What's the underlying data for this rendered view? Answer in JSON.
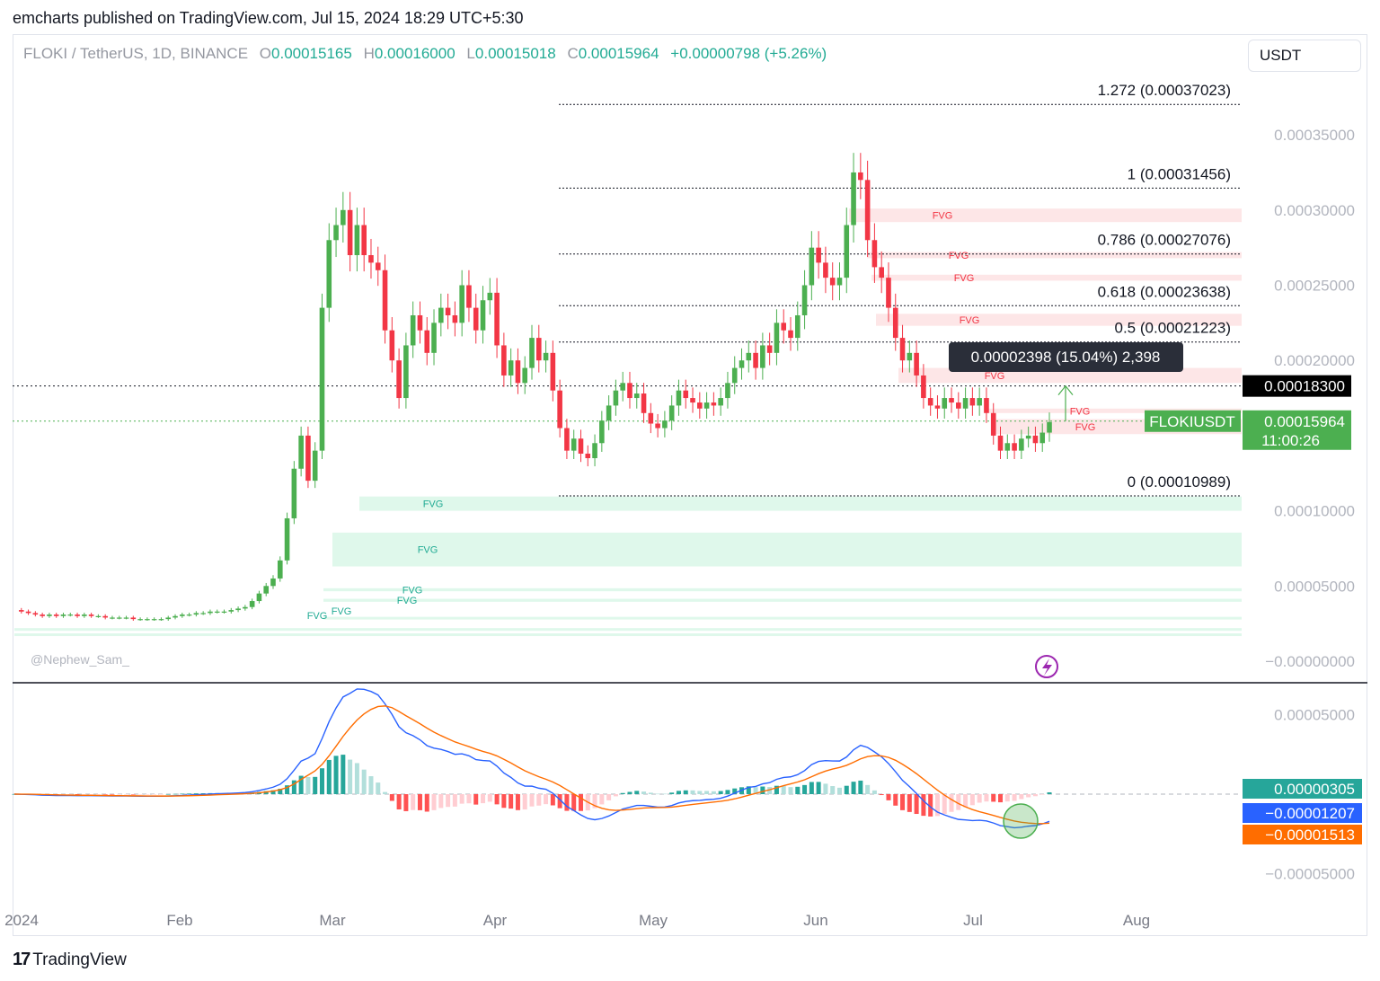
{
  "header": {
    "publisher": "emcharts published on TradingView.com, Jul 15, 2024 18:29 UTC+5:30"
  },
  "legend": {
    "symbol": "FLOKI / TetherUS, 1D, BINANCE",
    "open_key": "O",
    "open": "0.00015165",
    "high_key": "H",
    "high": "0.00016000",
    "low_key": "L",
    "low": "0.00015018",
    "close_key": "C",
    "close": "0.00015964",
    "change": "+0.00000798 (+5.26%)"
  },
  "currency_button": "USDT",
  "watermark": "@Nephew_Sam_",
  "brand": {
    "logo": "17",
    "name": "TradingView"
  },
  "colors": {
    "up": "#4caf50",
    "down": "#f23645",
    "macd": "#2962ff",
    "signal": "#ff6d00",
    "hist_up": "#26a69a",
    "hist_down": "#ff5252"
  },
  "chart_data": [
    {
      "type": "candlestick",
      "ylim": [
        0,
        0.00038
      ],
      "y_ticks": [
        "0.00035000",
        "0.00030000",
        "0.00025000",
        "0.00020000",
        "0.00010000",
        "0.00005000",
        "−0.00000000"
      ],
      "x_ticks": [
        "2024",
        "Feb",
        "Mar",
        "Apr",
        "May",
        "Jun",
        "Jul",
        "Aug"
      ],
      "price_markers": [
        {
          "label": "",
          "value": "0.00018300",
          "price": 0.000183,
          "style": "dark"
        },
        {
          "label": "FLOKIUSDT",
          "value": "0.00015964",
          "countdown": "11:00:26",
          "price": 0.00015964,
          "style": "green"
        }
      ],
      "fib_levels": [
        {
          "label": "1.272 (0.00037023)",
          "price": 0.00037023
        },
        {
          "label": "1 (0.00031456)",
          "price": 0.00031456
        },
        {
          "label": "0.786 (0.00027076)",
          "price": 0.00027076
        },
        {
          "label": "0.618 (0.00023638)",
          "price": 0.00023638
        },
        {
          "label": "0.5 (0.00021223)",
          "price": 0.00021223
        },
        {
          "label": "0 (0.00010989)",
          "price": 0.00010989
        }
      ],
      "fvg_zones": [
        {
          "label": "FVG",
          "kind": "bearish",
          "top": 0.000301,
          "bottom": 0.000292
        },
        {
          "label": "FVG",
          "kind": "bearish",
          "top": 0.000272,
          "bottom": 0.000268
        },
        {
          "label": "FVG",
          "kind": "bearish",
          "top": 0.000257,
          "bottom": 0.000253
        },
        {
          "label": "FVG",
          "kind": "bearish",
          "top": 0.000231,
          "bottom": 0.000223
        },
        {
          "label": "FVG",
          "kind": "bearish",
          "top": 0.000195,
          "bottom": 0.000185
        },
        {
          "label": "FVG",
          "kind": "bearish",
          "top": 0.000168,
          "bottom": 0.000165
        },
        {
          "label": "FVG",
          "kind": "bearish",
          "top": 0.000161,
          "bottom": 0.000151
        },
        {
          "label": "FVG",
          "kind": "bullish",
          "top": 0.0001095,
          "bottom": 0.0001
        },
        {
          "label": "FVG",
          "kind": "bullish",
          "top": 8.55e-05,
          "bottom": 6.3e-05
        },
        {
          "label": "FVG",
          "kind": "bullish",
          "top": 4.85e-05,
          "bottom": 4.65e-05
        },
        {
          "label": "FVG",
          "kind": "bullish",
          "top": 4.15e-05,
          "bottom": 3.95e-05
        },
        {
          "label": "FVG",
          "kind": "bullish",
          "top": 2.95e-05,
          "bottom": 2.8e-05
        },
        {
          "label": "FVG",
          "kind": "bullish",
          "top": 2.2e-05,
          "bottom": 2.05e-05
        },
        {
          "label": "FVG",
          "kind": "bullish",
          "top": 1.85e-05,
          "bottom": 1.7e-05
        }
      ],
      "measure_tooltip": "0.00002398 (15.04%) 2,398",
      "ohlc_close_path": [
        3.4e-05,
        3.3e-05,
        3.2e-05,
        3.1e-05,
        3e-05,
        3.1e-05,
        3e-05,
        3.1e-05,
        3.1e-05,
        3e-05,
        3.1e-05,
        3e-05,
        3e-05,
        2.9e-05,
        2.9e-05,
        2.9e-05,
        2.9e-05,
        2.8e-05,
        2.8e-05,
        2.8e-05,
        2.8e-05,
        2.8e-05,
        2.9e-05,
        3e-05,
        3.1e-05,
        3.1e-05,
        3.2e-05,
        3.2e-05,
        3.3e-05,
        3.3e-05,
        3.3e-05,
        3.4e-05,
        3.5e-05,
        3.6e-05,
        4e-05,
        4.5e-05,
        5e-05,
        5.5e-05,
        6.7e-05,
        9.5e-05,
        0.000128,
        0.00015,
        0.00012,
        0.00014,
        0.000235,
        0.00028,
        0.00029,
        0.0003,
        0.00027,
        0.00029,
        0.00027,
        0.000265,
        0.00026,
        0.00022,
        0.0002,
        0.000175,
        0.00021,
        0.00023,
        0.00022,
        0.000205,
        0.000225,
        0.000235,
        0.00023,
        0.000225,
        0.00025,
        0.000235,
        0.00022,
        0.00024,
        0.000245,
        0.00021,
        0.00019,
        0.0002,
        0.000185,
        0.000195,
        0.000215,
        0.0002,
        0.000205,
        0.00018,
        0.000155,
        0.00014,
        0.000148,
        0.000138,
        0.000135,
        0.000145,
        0.00016,
        0.00017,
        0.00018,
        0.000185,
        0.000175,
        0.000178,
        0.000165,
        0.000158,
        0.000155,
        0.00016,
        0.00017,
        0.00018,
        0.000175,
        0.000172,
        0.000168,
        0.000172,
        0.00017,
        0.000175,
        0.000185,
        0.000195,
        0.0002,
        0.000205,
        0.000195,
        0.00021,
        0.000205,
        0.000225,
        0.00022,
        0.000215,
        0.00023,
        0.00025,
        0.000275,
        0.000265,
        0.000255,
        0.00025,
        0.000255,
        0.00029,
        0.000325,
        0.00032,
        0.00028,
        0.000262,
        0.000255,
        0.000235,
        0.000215,
        0.0002,
        0.000205,
        0.00019,
        0.000175,
        0.00017,
        0.000168,
        0.000175,
        0.000172,
        0.000168,
        0.000175,
        0.00017,
        0.000175,
        0.000165,
        0.00015,
        0.00014,
        0.000145,
        0.00014,
        0.000148,
        0.00015,
        0.000145,
        0.000152,
        0.000159
      ]
    },
    {
      "type": "macd",
      "ylim": [
        -6e-05,
        7e-05
      ],
      "y_ticks": [
        "0.00005000",
        "−0.00005000"
      ],
      "markers": [
        {
          "value": "0.00000305",
          "style": "hist"
        },
        {
          "value": "−0.00001207",
          "style": "macd"
        },
        {
          "value": "−0.00001513",
          "style": "signal"
        }
      ]
    }
  ]
}
